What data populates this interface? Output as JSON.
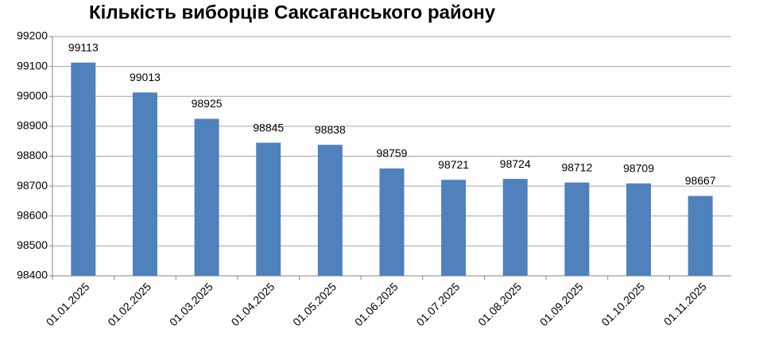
{
  "chart_data": {
    "type": "bar",
    "title": "Кількість виборців Саксаганського району",
    "categories": [
      "01.01.2025",
      "01.02.2025",
      "01.03.2025",
      "01.04.2025",
      "01.05.2025",
      "01.06.2025",
      "01.07.2025",
      "01.08.2025",
      "01.09.2025",
      "01.10.2025",
      "01.11.2025"
    ],
    "values": [
      99113,
      99013,
      98925,
      98845,
      98838,
      98759,
      98721,
      98724,
      98712,
      98709,
      98667
    ],
    "color": "#4f81bd",
    "ylim": [
      98400,
      99200
    ],
    "yticks": [
      98400,
      98500,
      98600,
      98700,
      98800,
      98900,
      99000,
      99100,
      99200
    ],
    "grid": true
  }
}
